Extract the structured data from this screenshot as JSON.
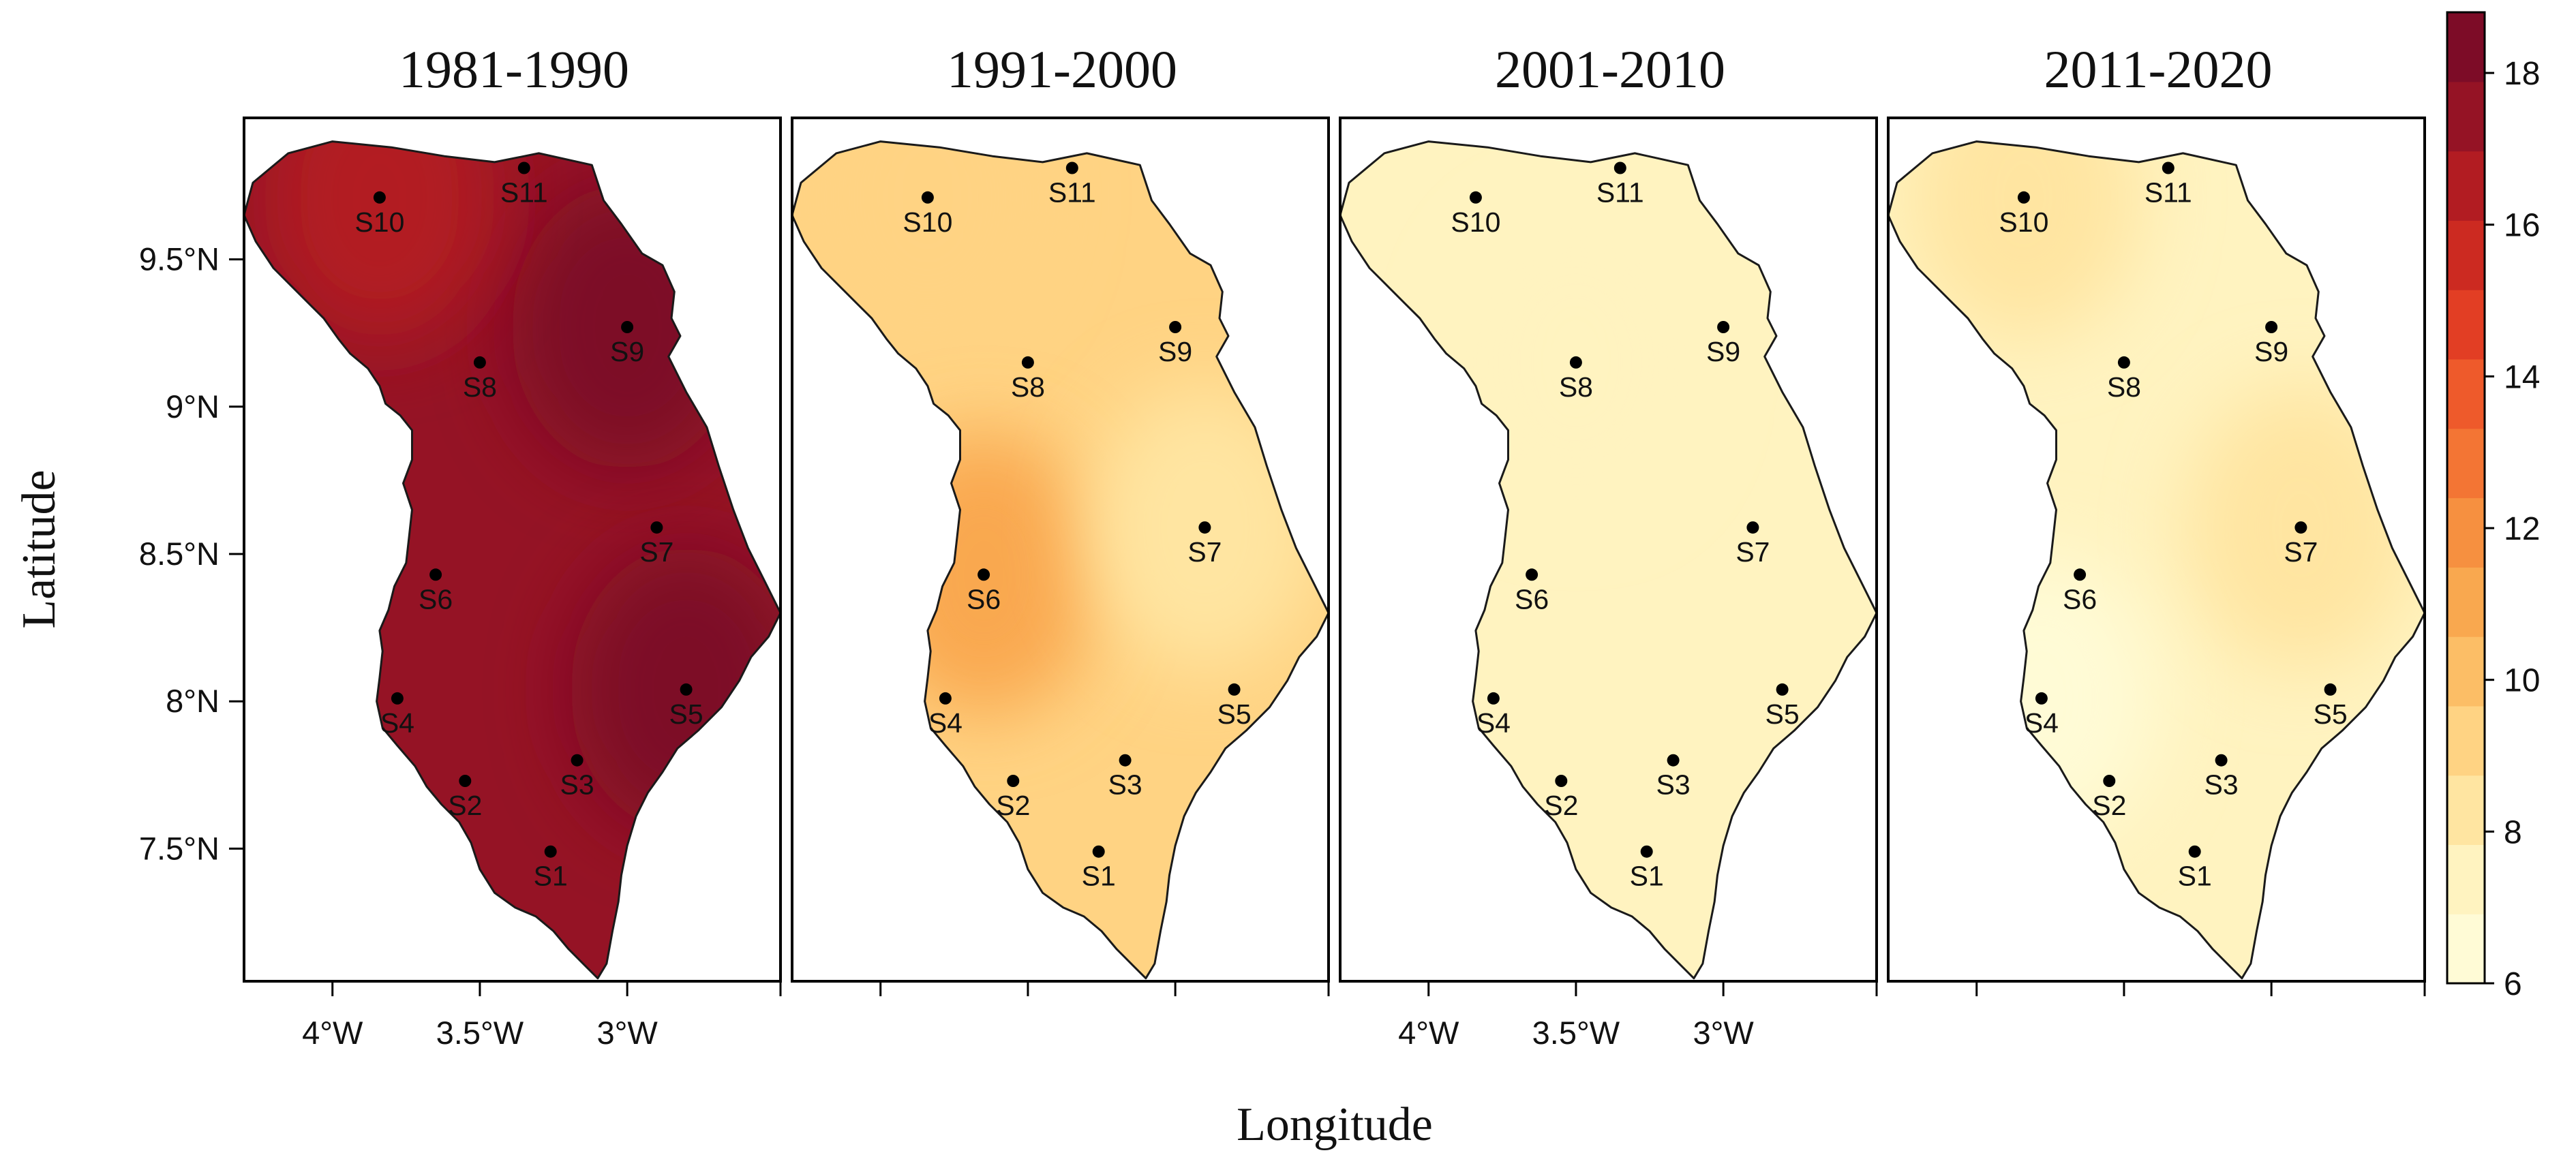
{
  "figure": {
    "xlabel": "Longitude",
    "ylabel": "Latitude",
    "x_ticks": [
      "4°W",
      "3.5°W",
      "3°W"
    ],
    "y_ticks": [
      "9.5°N",
      "9°N",
      "8.5°N",
      "8°N",
      "7.5°N"
    ],
    "x_tick_labels_on_panels": [
      0,
      2
    ]
  },
  "panels": [
    {
      "title": "1981-1990",
      "level": 17.6,
      "pockets": [
        {
          "near": "S9",
          "delta": 0.8
        },
        {
          "near": "S5",
          "delta": 0.8
        },
        {
          "near": "S10",
          "delta": -1.0
        }
      ]
    },
    {
      "title": "1991-2000",
      "level": 9.6,
      "pockets": [
        {
          "near": "S6",
          "delta": 1.0
        },
        {
          "near": "S7",
          "delta": -1.2
        },
        {
          "near": "S10",
          "delta": -0.4
        }
      ]
    },
    {
      "title": "2001-2010",
      "level": 7.0,
      "pockets": [
        {
          "near": "S8",
          "delta": 0.3
        }
      ]
    },
    {
      "title": "2011-2020",
      "level": 7.4,
      "pockets": [
        {
          "near": "S10",
          "delta": 0.8
        },
        {
          "near": "S7",
          "delta": 1.0
        },
        {
          "near": "S4",
          "delta": -0.6
        }
      ]
    }
  ],
  "stations": [
    {
      "id": "S1",
      "lon": -3.26,
      "lat": 7.49
    },
    {
      "id": "S2",
      "lon": -3.55,
      "lat": 7.73
    },
    {
      "id": "S3",
      "lon": -3.17,
      "lat": 7.8
    },
    {
      "id": "S4",
      "lon": -3.78,
      "lat": 8.01
    },
    {
      "id": "S5",
      "lon": -2.8,
      "lat": 8.04
    },
    {
      "id": "S6",
      "lon": -3.65,
      "lat": 8.43
    },
    {
      "id": "S7",
      "lon": -2.9,
      "lat": 8.59
    },
    {
      "id": "S8",
      "lon": -3.5,
      "lat": 9.15
    },
    {
      "id": "S9",
      "lon": -3.0,
      "lat": 9.27
    },
    {
      "id": "S10",
      "lon": -3.84,
      "lat": 9.71
    },
    {
      "id": "S11",
      "lon": -3.35,
      "lat": 9.81
    }
  ],
  "colorbar": {
    "min": 6,
    "max": 18.8,
    "ticks": [
      "6",
      "8",
      "10",
      "12",
      "14",
      "16",
      "18"
    ],
    "colors": [
      "#fffbd6",
      "#fff3c0",
      "#ffe5a1",
      "#ffd383",
      "#fcbe66",
      "#f9a84f",
      "#f69040",
      "#f37534",
      "#ee5a2b",
      "#e23e24",
      "#cc2a21",
      "#b21c22",
      "#951325",
      "#7d0c27"
    ]
  }
}
